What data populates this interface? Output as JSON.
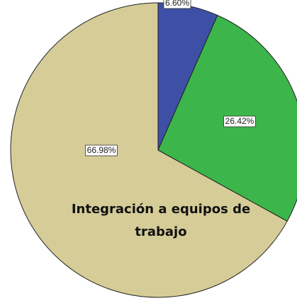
{
  "chart_data": {
    "type": "pie",
    "title": "Integración a equipos de trabajo",
    "categories": [
      null,
      null,
      null
    ],
    "values": [
      6.6,
      26.42,
      66.98
    ],
    "value_labels": [
      "6.60%",
      "26.42%",
      "66.98%"
    ],
    "colors": [
      "#3e4fa6",
      "#3cb64a",
      "#d5cc98"
    ]
  }
}
